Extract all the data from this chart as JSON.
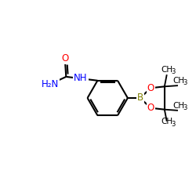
{
  "background_color": "#ffffff",
  "atom_colors": {
    "O": "#ff0000",
    "N": "#0000ff",
    "B": "#808000",
    "C": "#000000"
  },
  "bond_lw": 1.5,
  "font_size": 8.5,
  "fig_size": [
    2.5,
    2.5
  ],
  "dpi": 100,
  "xlim": [
    0,
    10
  ],
  "ylim": [
    0,
    10
  ]
}
